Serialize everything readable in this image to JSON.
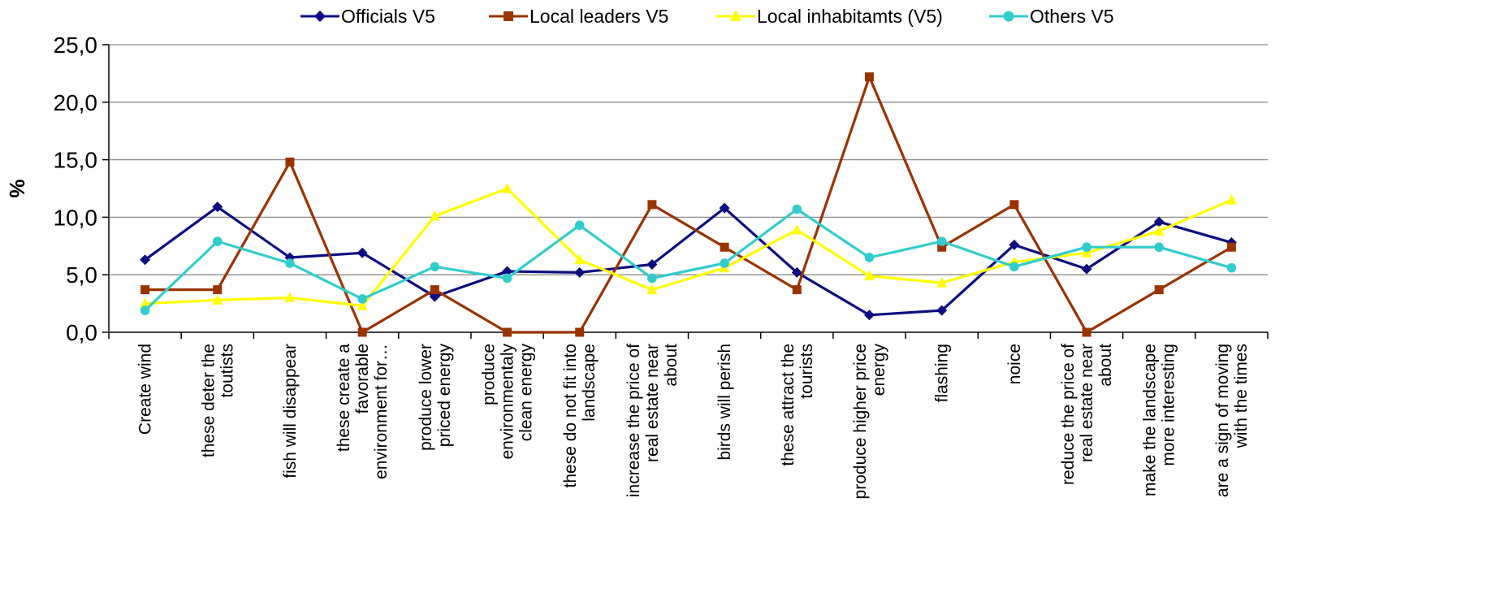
{
  "chart_data": {
    "type": "line",
    "ylabel": "%",
    "ylim": [
      0,
      25
    ],
    "yticks": [
      "0,0",
      "5,0",
      "10,0",
      "15,0",
      "20,0",
      "25,0"
    ],
    "grid": true,
    "legend_position": "top",
    "categories": [
      [
        "Create wind"
      ],
      [
        "these deter the",
        "toutists"
      ],
      [
        "fish will disappear"
      ],
      [
        "these create a",
        "favorable",
        "environment for…"
      ],
      [
        "produce lower",
        "priced energy"
      ],
      [
        "produce",
        "environmentaly",
        "clean energy"
      ],
      [
        "these do not fit into",
        "landscape"
      ],
      [
        "increase the price of",
        "real estate near",
        "about"
      ],
      [
        "birds will perish"
      ],
      [
        "these attract the",
        "tourists"
      ],
      [
        "produce higher price",
        "energy"
      ],
      [
        "flashing"
      ],
      [
        "noice"
      ],
      [
        "reduce the price of",
        "real estate near",
        "about"
      ],
      [
        "make the landscape",
        "more interesting"
      ],
      [
        "are a sign of moving",
        "with the times"
      ]
    ],
    "series": [
      {
        "name": "Officials V5",
        "color": "#0d0d80",
        "marker": "diamond",
        "values": [
          6.3,
          10.9,
          6.5,
          6.9,
          3.1,
          5.3,
          5.2,
          5.9,
          10.8,
          5.2,
          1.5,
          1.9,
          7.6,
          5.5,
          9.6,
          7.8
        ]
      },
      {
        "name": "Local leaders V5",
        "color": "#993300",
        "marker": "square",
        "values": [
          3.7,
          3.7,
          14.8,
          0.0,
          3.7,
          0.0,
          0.0,
          11.1,
          7.4,
          3.7,
          22.2,
          7.4,
          11.1,
          0.0,
          3.7,
          7.4
        ]
      },
      {
        "name": "Local inhabitamts (V5)",
        "color": "#ffff00",
        "marker": "triangle",
        "values": [
          2.5,
          2.8,
          3.0,
          2.3,
          10.1,
          12.5,
          6.3,
          3.7,
          5.6,
          8.9,
          4.9,
          4.3,
          6.1,
          6.9,
          8.8,
          11.5
        ]
      },
      {
        "name": "Others V5",
        "color": "#33cccc",
        "marker": "circle",
        "values": [
          1.9,
          7.9,
          6.0,
          2.9,
          5.7,
          4.7,
          9.3,
          4.7,
          6.0,
          10.7,
          6.5,
          7.9,
          5.7,
          7.4,
          7.4,
          5.6
        ]
      }
    ]
  }
}
